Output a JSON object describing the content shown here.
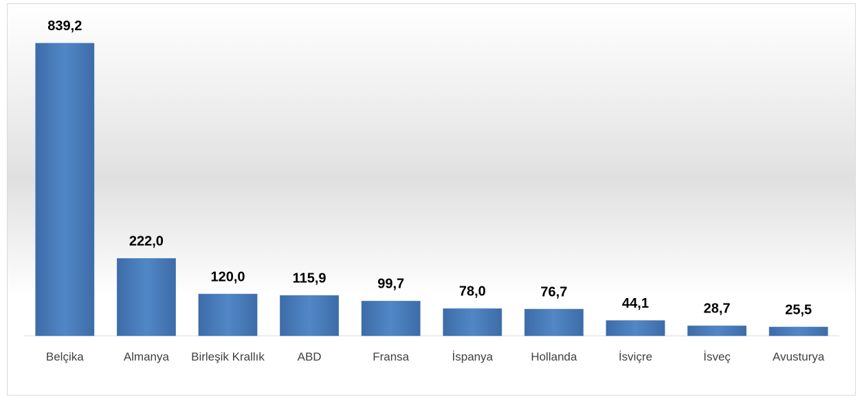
{
  "chart_data": {
    "type": "bar",
    "categories": [
      "Belçika",
      "Almanya",
      "Birleşik Krallık",
      "ABD",
      "Fransa",
      "İspanya",
      "Hollanda",
      "İsviçre",
      "İsveç",
      "Avusturya"
    ],
    "values": [
      839.2,
      222.0,
      120.0,
      115.9,
      99.7,
      78.0,
      76.7,
      44.1,
      28.7,
      25.5
    ],
    "value_labels": [
      "839,2",
      "222,0",
      "120,0",
      "115,9",
      "99,7",
      "78,0",
      "76,7",
      "44,1",
      "28,7",
      "25,5"
    ],
    "color": "#4f81bd",
    "ylim": [
      0,
      900
    ]
  }
}
